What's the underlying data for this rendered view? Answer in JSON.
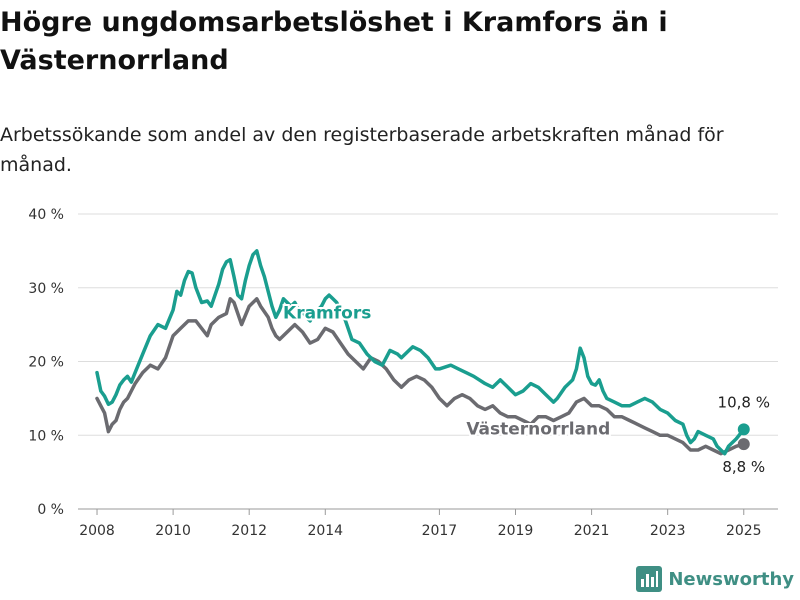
{
  "title": "Högre ungdomsarbetslöshet i Kramfors än i Västernorrland",
  "subtitle": "Arbetssökande som andel av den registerbaserade arbetskraften månad för månad.",
  "brand": {
    "name": "Newsworthy",
    "icon": "bar-chart-logo-icon",
    "color": "#3f8f84"
  },
  "chart_data": {
    "type": "line",
    "title": "Högre ungdomsarbetslöshet i Kramfors än i Västernorrland",
    "subtitle": "Arbetssökande som andel av den registerbaserade arbetskraften månad för månad.",
    "xlabel": "",
    "ylabel": "",
    "xlim": [
      2007.5,
      2025.9
    ],
    "ylim": [
      0,
      40
    ],
    "grid": true,
    "x_ticks": [
      2008,
      2010,
      2012,
      2014,
      2017,
      2019,
      2021,
      2023,
      2025
    ],
    "x_tick_labels": [
      "2008",
      "2010",
      "2012",
      "2014",
      "2017",
      "2019",
      "2021",
      "2023",
      "2025"
    ],
    "y_ticks": [
      0,
      10,
      20,
      30,
      40
    ],
    "y_tick_labels": [
      "0 %",
      "10 %",
      "20 %",
      "30 %",
      "40 %"
    ],
    "series": [
      {
        "name": "Kramfors",
        "color": "#1a9e8f",
        "label": "Kramfors",
        "end_label": "10,8 %",
        "points": [
          [
            2008.0,
            18.5
          ],
          [
            2008.1,
            16.0
          ],
          [
            2008.2,
            15.3
          ],
          [
            2008.3,
            14.2
          ],
          [
            2008.4,
            14.5
          ],
          [
            2008.5,
            15.5
          ],
          [
            2008.6,
            16.8
          ],
          [
            2008.7,
            17.5
          ],
          [
            2008.8,
            18.0
          ],
          [
            2008.9,
            17.2
          ],
          [
            2009.0,
            18.5
          ],
          [
            2009.2,
            21.0
          ],
          [
            2009.4,
            23.5
          ],
          [
            2009.6,
            25.0
          ],
          [
            2009.8,
            24.5
          ],
          [
            2010.0,
            27.0
          ],
          [
            2010.1,
            29.5
          ],
          [
            2010.2,
            29.0
          ],
          [
            2010.3,
            31.0
          ],
          [
            2010.4,
            32.2
          ],
          [
            2010.5,
            32.0
          ],
          [
            2010.6,
            30.0
          ],
          [
            2010.75,
            28.0
          ],
          [
            2010.9,
            28.2
          ],
          [
            2011.0,
            27.5
          ],
          [
            2011.1,
            29.0
          ],
          [
            2011.2,
            30.5
          ],
          [
            2011.3,
            32.5
          ],
          [
            2011.4,
            33.5
          ],
          [
            2011.5,
            33.8
          ],
          [
            2011.6,
            31.5
          ],
          [
            2011.7,
            29.0
          ],
          [
            2011.8,
            28.5
          ],
          [
            2011.9,
            31.0
          ],
          [
            2012.0,
            33.0
          ],
          [
            2012.1,
            34.5
          ],
          [
            2012.2,
            35.0
          ],
          [
            2012.3,
            33.0
          ],
          [
            2012.4,
            31.5
          ],
          [
            2012.5,
            29.5
          ],
          [
            2012.6,
            27.5
          ],
          [
            2012.7,
            26.0
          ],
          [
            2012.8,
            27.0
          ],
          [
            2012.9,
            28.5
          ],
          [
            2013.0,
            28.0
          ],
          [
            2013.1,
            27.5
          ],
          [
            2013.2,
            28.0
          ],
          [
            2013.3,
            27.0
          ],
          [
            2013.4,
            26.8
          ],
          [
            2013.5,
            26.0
          ],
          [
            2013.6,
            25.5
          ],
          [
            2013.7,
            26.5
          ],
          [
            2013.8,
            27.0
          ],
          [
            2013.9,
            27.5
          ],
          [
            2014.0,
            28.5
          ],
          [
            2014.1,
            29.0
          ],
          [
            2014.2,
            28.5
          ],
          [
            2014.3,
            28.0
          ],
          [
            2014.4,
            27.0
          ],
          [
            2014.5,
            26.0
          ],
          [
            2014.6,
            24.5
          ],
          [
            2014.7,
            23.0
          ],
          [
            2014.9,
            22.5
          ],
          [
            2015.1,
            21.0
          ],
          [
            2015.3,
            20.0
          ],
          [
            2015.5,
            19.5
          ],
          [
            2015.7,
            21.5
          ],
          [
            2015.9,
            21.0
          ],
          [
            2016.0,
            20.5
          ],
          [
            2016.2,
            21.5
          ],
          [
            2016.3,
            22.0
          ],
          [
            2016.5,
            21.5
          ],
          [
            2016.7,
            20.5
          ],
          [
            2016.9,
            19.0
          ],
          [
            2017.0,
            19.0
          ],
          [
            2017.3,
            19.5
          ],
          [
            2017.5,
            19.0
          ],
          [
            2017.7,
            18.5
          ],
          [
            2017.9,
            18.0
          ],
          [
            2018.2,
            17.0
          ],
          [
            2018.4,
            16.5
          ],
          [
            2018.6,
            17.5
          ],
          [
            2018.8,
            16.5
          ],
          [
            2019.0,
            15.5
          ],
          [
            2019.2,
            16.0
          ],
          [
            2019.4,
            17.0
          ],
          [
            2019.6,
            16.5
          ],
          [
            2019.8,
            15.5
          ],
          [
            2020.0,
            14.5
          ],
          [
            2020.1,
            15.0
          ],
          [
            2020.3,
            16.5
          ],
          [
            2020.5,
            17.5
          ],
          [
            2020.6,
            19.0
          ],
          [
            2020.7,
            21.8
          ],
          [
            2020.8,
            20.5
          ],
          [
            2020.9,
            18.0
          ],
          [
            2021.0,
            17.0
          ],
          [
            2021.1,
            16.8
          ],
          [
            2021.2,
            17.5
          ],
          [
            2021.3,
            16.0
          ],
          [
            2021.4,
            15.0
          ],
          [
            2021.6,
            14.5
          ],
          [
            2021.8,
            14.0
          ],
          [
            2022.0,
            14.0
          ],
          [
            2022.2,
            14.5
          ],
          [
            2022.4,
            15.0
          ],
          [
            2022.6,
            14.5
          ],
          [
            2022.8,
            13.5
          ],
          [
            2023.0,
            13.0
          ],
          [
            2023.2,
            12.0
          ],
          [
            2023.4,
            11.5
          ],
          [
            2023.5,
            10.0
          ],
          [
            2023.6,
            9.0
          ],
          [
            2023.7,
            9.5
          ],
          [
            2023.8,
            10.5
          ],
          [
            2024.0,
            10.0
          ],
          [
            2024.2,
            9.5
          ],
          [
            2024.3,
            8.5
          ],
          [
            2024.4,
            8.0
          ],
          [
            2024.5,
            7.5
          ],
          [
            2024.6,
            8.5
          ],
          [
            2024.8,
            9.5
          ],
          [
            2025.0,
            10.8
          ]
        ]
      },
      {
        "name": "Västernorrland",
        "color": "#6b6b70",
        "label": "Västernorrland",
        "end_label": "8,8 %",
        "points": [
          [
            2008.0,
            15.0
          ],
          [
            2008.1,
            14.0
          ],
          [
            2008.2,
            13.0
          ],
          [
            2008.3,
            10.5
          ],
          [
            2008.4,
            11.5
          ],
          [
            2008.5,
            12.0
          ],
          [
            2008.6,
            13.5
          ],
          [
            2008.7,
            14.5
          ],
          [
            2008.8,
            15.0
          ],
          [
            2008.9,
            16.0
          ],
          [
            2009.0,
            17.0
          ],
          [
            2009.2,
            18.5
          ],
          [
            2009.4,
            19.5
          ],
          [
            2009.6,
            19.0
          ],
          [
            2009.8,
            20.5
          ],
          [
            2010.0,
            23.5
          ],
          [
            2010.2,
            24.5
          ],
          [
            2010.4,
            25.5
          ],
          [
            2010.6,
            25.5
          ],
          [
            2010.75,
            24.5
          ],
          [
            2010.9,
            23.5
          ],
          [
            2011.0,
            25.0
          ],
          [
            2011.2,
            26.0
          ],
          [
            2011.4,
            26.5
          ],
          [
            2011.5,
            28.5
          ],
          [
            2011.6,
            28.0
          ],
          [
            2011.8,
            25.0
          ],
          [
            2012.0,
            27.5
          ],
          [
            2012.2,
            28.5
          ],
          [
            2012.3,
            27.5
          ],
          [
            2012.5,
            26.0
          ],
          [
            2012.6,
            24.5
          ],
          [
            2012.7,
            23.5
          ],
          [
            2012.8,
            23.0
          ],
          [
            2013.0,
            24.0
          ],
          [
            2013.2,
            25.0
          ],
          [
            2013.4,
            24.0
          ],
          [
            2013.6,
            22.5
          ],
          [
            2013.8,
            23.0
          ],
          [
            2014.0,
            24.5
          ],
          [
            2014.2,
            24.0
          ],
          [
            2014.4,
            22.5
          ],
          [
            2014.6,
            21.0
          ],
          [
            2014.8,
            20.0
          ],
          [
            2015.0,
            19.0
          ],
          [
            2015.2,
            20.5
          ],
          [
            2015.4,
            20.0
          ],
          [
            2015.6,
            19.0
          ],
          [
            2015.8,
            17.5
          ],
          [
            2016.0,
            16.5
          ],
          [
            2016.2,
            17.5
          ],
          [
            2016.4,
            18.0
          ],
          [
            2016.6,
            17.5
          ],
          [
            2016.8,
            16.5
          ],
          [
            2017.0,
            15.0
          ],
          [
            2017.2,
            14.0
          ],
          [
            2017.4,
            15.0
          ],
          [
            2017.6,
            15.5
          ],
          [
            2017.8,
            15.0
          ],
          [
            2018.0,
            14.0
          ],
          [
            2018.2,
            13.5
          ],
          [
            2018.4,
            14.0
          ],
          [
            2018.6,
            13.0
          ],
          [
            2018.8,
            12.5
          ],
          [
            2019.0,
            12.5
          ],
          [
            2019.2,
            12.0
          ],
          [
            2019.4,
            11.5
          ],
          [
            2019.6,
            12.5
          ],
          [
            2019.8,
            12.5
          ],
          [
            2020.0,
            12.0
          ],
          [
            2020.2,
            12.5
          ],
          [
            2020.4,
            13.0
          ],
          [
            2020.6,
            14.5
          ],
          [
            2020.8,
            15.0
          ],
          [
            2021.0,
            14.0
          ],
          [
            2021.2,
            14.0
          ],
          [
            2021.4,
            13.5
          ],
          [
            2021.6,
            12.5
          ],
          [
            2021.8,
            12.5
          ],
          [
            2022.0,
            12.0
          ],
          [
            2022.2,
            11.5
          ],
          [
            2022.4,
            11.0
          ],
          [
            2022.6,
            10.5
          ],
          [
            2022.8,
            10.0
          ],
          [
            2023.0,
            10.0
          ],
          [
            2023.2,
            9.5
          ],
          [
            2023.4,
            9.0
          ],
          [
            2023.6,
            8.0
          ],
          [
            2023.8,
            8.0
          ],
          [
            2024.0,
            8.5
          ],
          [
            2024.2,
            8.0
          ],
          [
            2024.4,
            7.5
          ],
          [
            2024.6,
            8.0
          ],
          [
            2024.8,
            8.5
          ],
          [
            2025.0,
            8.8
          ]
        ]
      }
    ]
  }
}
